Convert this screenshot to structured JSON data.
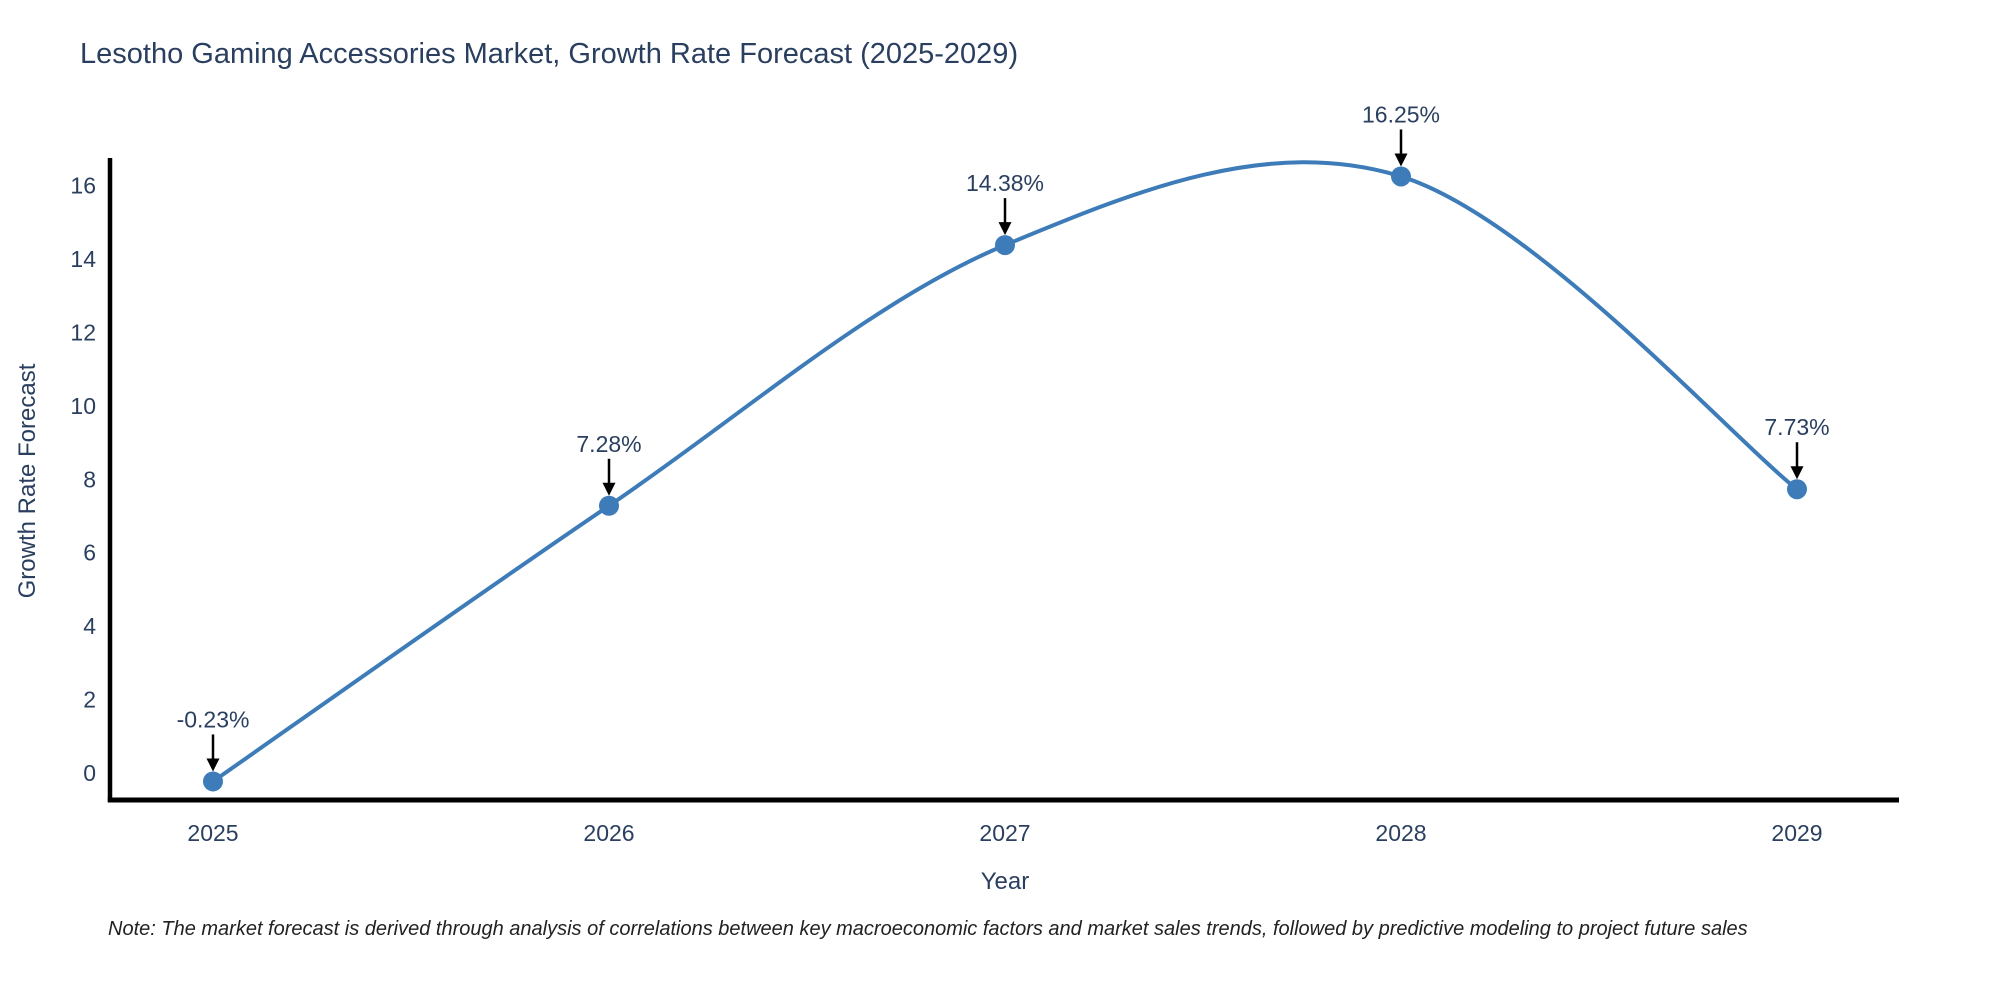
{
  "title": "Lesotho Gaming Accessories Market, Growth Rate Forecast (2025-2029)",
  "note": "Note: The market forecast is derived through analysis of correlations between key macroeconomic factors and market sales trends, followed by predictive modeling to project future sales",
  "chart_data": {
    "type": "line",
    "title": "Lesotho Gaming Accessories Market, Growth Rate Forecast (2025-2029)",
    "xlabel": "Year",
    "ylabel": "Growth Rate Forecast",
    "categories": [
      "2025",
      "2026",
      "2027",
      "2028",
      "2029"
    ],
    "values": [
      -0.23,
      7.28,
      14.38,
      16.25,
      7.73
    ],
    "point_labels": [
      "-0.23%",
      "7.28%",
      "14.38%",
      "16.25%",
      "7.73%"
    ],
    "y_ticks": [
      0,
      2,
      4,
      6,
      8,
      10,
      12,
      14,
      16
    ],
    "ylim": [
      -0.75,
      16.75
    ],
    "line_shape": "spline",
    "grid": false,
    "legend": "none",
    "annotation_style": "value label above each point with downward black arrow",
    "colors": {
      "line": "#3d7cb8",
      "marker": "#3d7cb8",
      "arrow": "#000000",
      "axis": "#000000",
      "text": "#2a3f5f"
    }
  }
}
